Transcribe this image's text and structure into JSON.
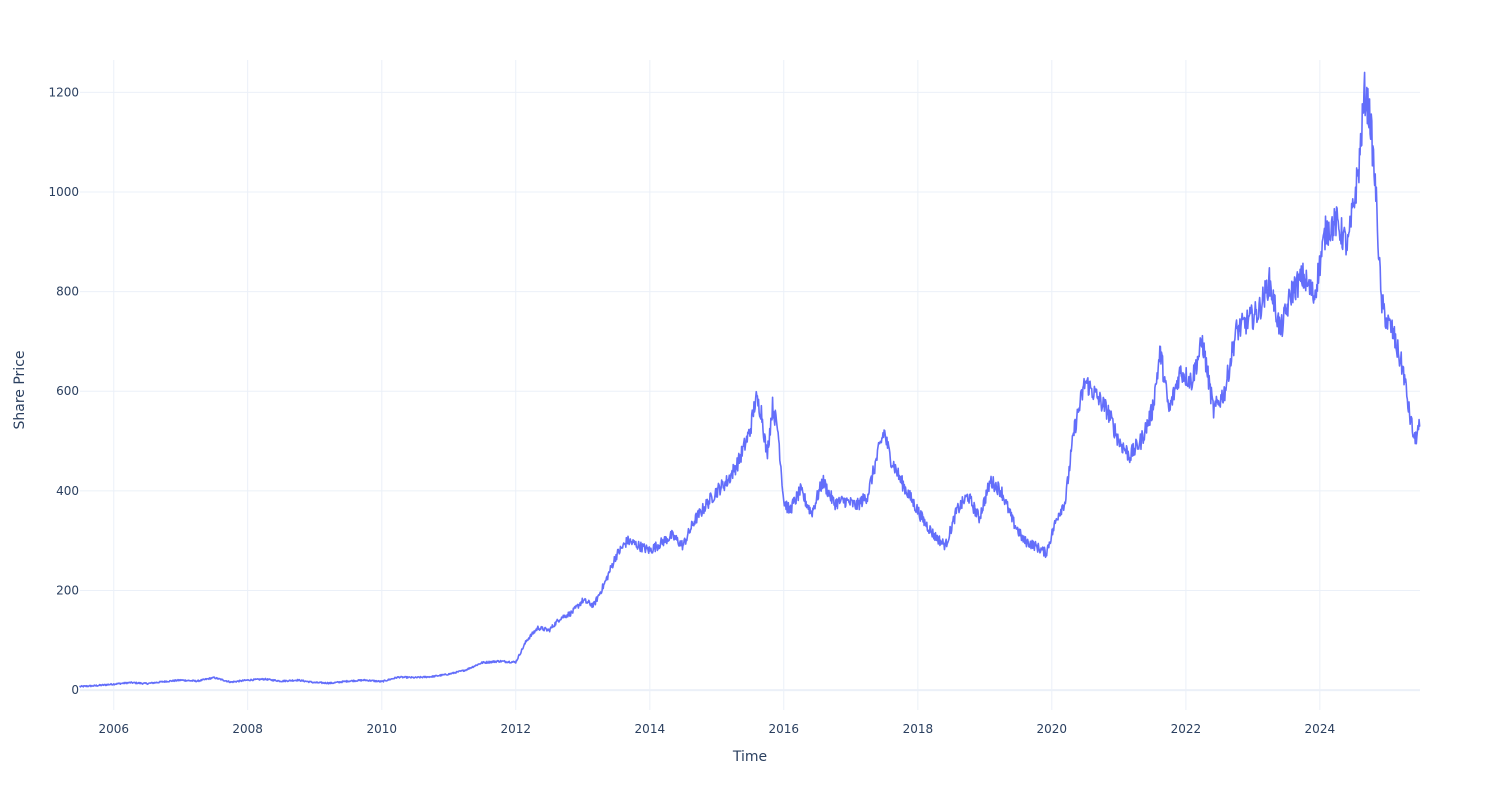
{
  "chart_data": {
    "type": "line",
    "title": "",
    "xlabel": "Time",
    "ylabel": "Share Price",
    "xlim": [
      "2005-07-01",
      "2025-06-30"
    ],
    "ylim": [
      -40,
      1265
    ],
    "x_ticks": [
      "2006",
      "2008",
      "2010",
      "2012",
      "2014",
      "2016",
      "2018",
      "2020",
      "2022",
      "2024"
    ],
    "y_ticks": [
      0,
      200,
      400,
      600,
      800,
      1000,
      1200
    ],
    "y_tick_labels": [
      "0",
      "200",
      "400",
      "600",
      "800",
      "1000",
      "1200"
    ],
    "grid": true,
    "legend": "none",
    "colors": {
      "line": "#636efa",
      "grid": "#ebf0f8",
      "text": "#2a3f5f",
      "background": "#ffffff"
    },
    "series": [
      {
        "x": [
          "2005-07-01",
          "2005-10-01",
          "2006-01-01",
          "2006-04-01",
          "2006-07-01",
          "2006-10-01",
          "2007-01-01",
          "2007-04-01",
          "2007-07-01",
          "2007-10-01",
          "2008-01-01",
          "2008-04-01",
          "2008-07-01",
          "2008-10-01",
          "2009-01-01",
          "2009-04-01",
          "2009-07-01",
          "2009-10-01",
          "2010-01-01",
          "2010-04-01",
          "2010-07-01",
          "2010-10-01",
          "2011-01-01",
          "2011-04-01",
          "2011-07-01",
          "2011-10-01",
          "2012-01-01",
          "2012-03-01",
          "2012-05-01",
          "2012-07-01",
          "2012-09-01",
          "2012-11-01",
          "2013-01-01",
          "2013-03-01",
          "2013-05-01",
          "2013-07-01",
          "2013-09-01",
          "2013-11-01",
          "2014-01-01",
          "2014-03-01",
          "2014-05-01",
          "2014-07-01",
          "2014-09-01",
          "2014-11-01",
          "2015-01-01",
          "2015-03-01",
          "2015-05-01",
          "2015-07-01",
          "2015-08-01",
          "2015-09-01",
          "2015-10-01",
          "2015-11-01",
          "2015-12-01",
          "2016-01-01",
          "2016-02-01",
          "2016-04-01",
          "2016-06-01",
          "2016-08-01",
          "2016-10-01",
          "2016-12-01",
          "2017-02-01",
          "2017-04-01",
          "2017-06-01",
          "2017-07-01",
          "2017-08-01",
          "2017-10-01",
          "2017-12-01",
          "2018-02-01",
          "2018-04-01",
          "2018-06-01",
          "2018-08-01",
          "2018-10-01",
          "2018-12-01",
          "2019-02-01",
          "2019-04-01",
          "2019-06-01",
          "2019-08-01",
          "2019-10-01",
          "2019-12-01",
          "2020-02-01",
          "2020-03-15",
          "2020-05-01",
          "2020-07-01",
          "2020-09-01",
          "2020-11-01",
          "2021-01-01",
          "2021-03-01",
          "2021-05-01",
          "2021-07-01",
          "2021-08-15",
          "2021-10-01",
          "2021-12-01",
          "2022-02-01",
          "2022-04-01",
          "2022-06-01",
          "2022-08-01",
          "2022-10-01",
          "2022-12-01",
          "2023-02-01",
          "2023-04-01",
          "2023-06-01",
          "2023-08-01",
          "2023-10-01",
          "2023-12-01",
          "2024-02-01",
          "2024-04-01",
          "2024-06-01",
          "2024-08-01",
          "2024-09-01",
          "2024-10-01",
          "2024-11-01",
          "2024-12-01",
          "2025-01-01",
          "2025-02-01",
          "2025-03-01",
          "2025-04-01",
          "2025-05-01",
          "2025-06-01",
          "2025-06-28"
        ],
        "y": [
          7,
          9,
          12,
          15,
          13,
          17,
          20,
          18,
          25,
          16,
          20,
          22,
          18,
          20,
          15,
          14,
          18,
          20,
          17,
          26,
          25,
          27,
          32,
          40,
          55,
          58,
          56,
          100,
          125,
          120,
          145,
          155,
          180,
          170,
          215,
          270,
          300,
          290,
          280,
          295,
          310,
          290,
          340,
          370,
          400,
          420,
          460,
          520,
          585,
          560,
          470,
          570,
          520,
          380,
          360,
          400,
          355,
          420,
          375,
          380,
          370,
          390,
          480,
          520,
          470,
          420,
          380,
          340,
          310,
          290,
          360,
          390,
          345,
          420,
          400,
          340,
          300,
          290,
          275,
          350,
          380,
          520,
          620,
          590,
          560,
          500,
          470,
          500,
          560,
          680,
          560,
          640,
          620,
          700,
          560,
          600,
          720,
          740,
          760,
          820,
          720,
          800,
          830,
          790,
          920,
          940,
          890,
          1050,
          1200,
          1150,
          1000,
          780,
          740,
          720,
          680,
          640,
          560,
          500,
          530
        ]
      }
    ]
  }
}
